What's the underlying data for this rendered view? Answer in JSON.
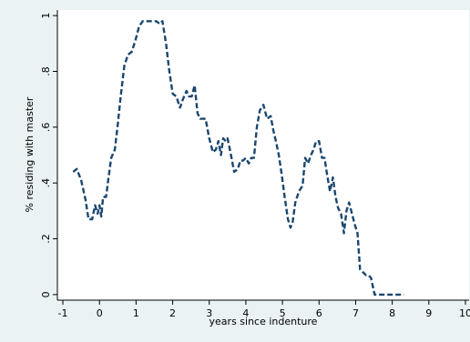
{
  "chart_data": {
    "type": "line",
    "xlabel": "years since indenture",
    "ylabel": "% residing with master",
    "xlim": [
      -1.15,
      10.1
    ],
    "ylim": [
      -0.02,
      1.02
    ],
    "xticks": [
      -1,
      0,
      1,
      2,
      3,
      4,
      5,
      6,
      7,
      8,
      9,
      10
    ],
    "yticks": [
      0,
      0.2,
      0.4,
      0.6,
      0.8,
      1
    ],
    "xtick_labels": [
      "-1",
      "0",
      "1",
      "2",
      "3",
      "4",
      "5",
      "6",
      "7",
      "8",
      "9",
      "10"
    ],
    "ytick_labels": [
      "0",
      ".2",
      ".4",
      ".6",
      ".8",
      "1"
    ],
    "grid": false,
    "line_style": "dashed",
    "colors": {
      "plot_bg": "#ffffff",
      "outer_bg": "#eaf2f3",
      "series": "#1a476f"
    },
    "series": [
      {
        "x": [
          -0.72,
          -0.62,
          -0.5,
          -0.38,
          -0.3,
          -0.2,
          -0.12,
          -0.05,
          0.0,
          0.05,
          0.1,
          0.18,
          0.25,
          0.32,
          0.42,
          0.5,
          0.58,
          0.68,
          0.78,
          0.88,
          0.98,
          1.08,
          1.18,
          1.28,
          1.38,
          1.45,
          1.55,
          1.65,
          1.72,
          1.82,
          1.9,
          2.0,
          2.1,
          2.2,
          2.28,
          2.38,
          2.45,
          2.52,
          2.6,
          2.68,
          2.75,
          2.82,
          2.9,
          3.0,
          3.1,
          3.18,
          3.25,
          3.32,
          3.38,
          3.45,
          3.5,
          3.58,
          3.68,
          3.78,
          3.85,
          3.92,
          4.0,
          4.08,
          4.15,
          4.22,
          4.3,
          4.38,
          4.48,
          4.58,
          4.68,
          4.75,
          4.82,
          4.9,
          4.98,
          5.05,
          5.15,
          5.22,
          5.28,
          5.35,
          5.45,
          5.55,
          5.62,
          5.7,
          5.78,
          5.85,
          5.92,
          6.0,
          6.08,
          6.15,
          6.22,
          6.3,
          6.38,
          6.45,
          6.52,
          6.6,
          6.68,
          6.75,
          6.82,
          6.9,
          6.98,
          7.05,
          7.12,
          7.2,
          7.28,
          7.35,
          7.42,
          7.52,
          7.6,
          7.68,
          7.75,
          7.8,
          7.88,
          7.95,
          8.02,
          8.1,
          8.18,
          8.25,
          8.32
        ],
        "y": [
          0.44,
          0.45,
          0.41,
          0.34,
          0.27,
          0.27,
          0.32,
          0.29,
          0.32,
          0.28,
          0.35,
          0.35,
          0.42,
          0.49,
          0.52,
          0.61,
          0.71,
          0.82,
          0.86,
          0.87,
          0.91,
          0.96,
          0.98,
          0.98,
          0.98,
          0.98,
          0.98,
          0.97,
          0.98,
          0.9,
          0.81,
          0.72,
          0.71,
          0.67,
          0.7,
          0.73,
          0.71,
          0.71,
          0.75,
          0.65,
          0.63,
          0.63,
          0.63,
          0.56,
          0.51,
          0.52,
          0.55,
          0.5,
          0.56,
          0.55,
          0.56,
          0.51,
          0.44,
          0.45,
          0.48,
          0.48,
          0.49,
          0.47,
          0.49,
          0.49,
          0.6,
          0.66,
          0.68,
          0.63,
          0.64,
          0.59,
          0.55,
          0.5,
          0.43,
          0.36,
          0.27,
          0.24,
          0.26,
          0.33,
          0.37,
          0.39,
          0.49,
          0.47,
          0.5,
          0.52,
          0.55,
          0.55,
          0.49,
          0.49,
          0.43,
          0.37,
          0.42,
          0.35,
          0.31,
          0.29,
          0.22,
          0.3,
          0.33,
          0.29,
          0.25,
          0.22,
          0.09,
          0.08,
          0.07,
          0.07,
          0.06,
          0.0,
          0.0,
          0.0,
          0.0,
          0.0,
          0.0,
          0.0,
          0.0,
          0.0,
          0.0,
          0.0,
          0.0
        ]
      }
    ]
  }
}
